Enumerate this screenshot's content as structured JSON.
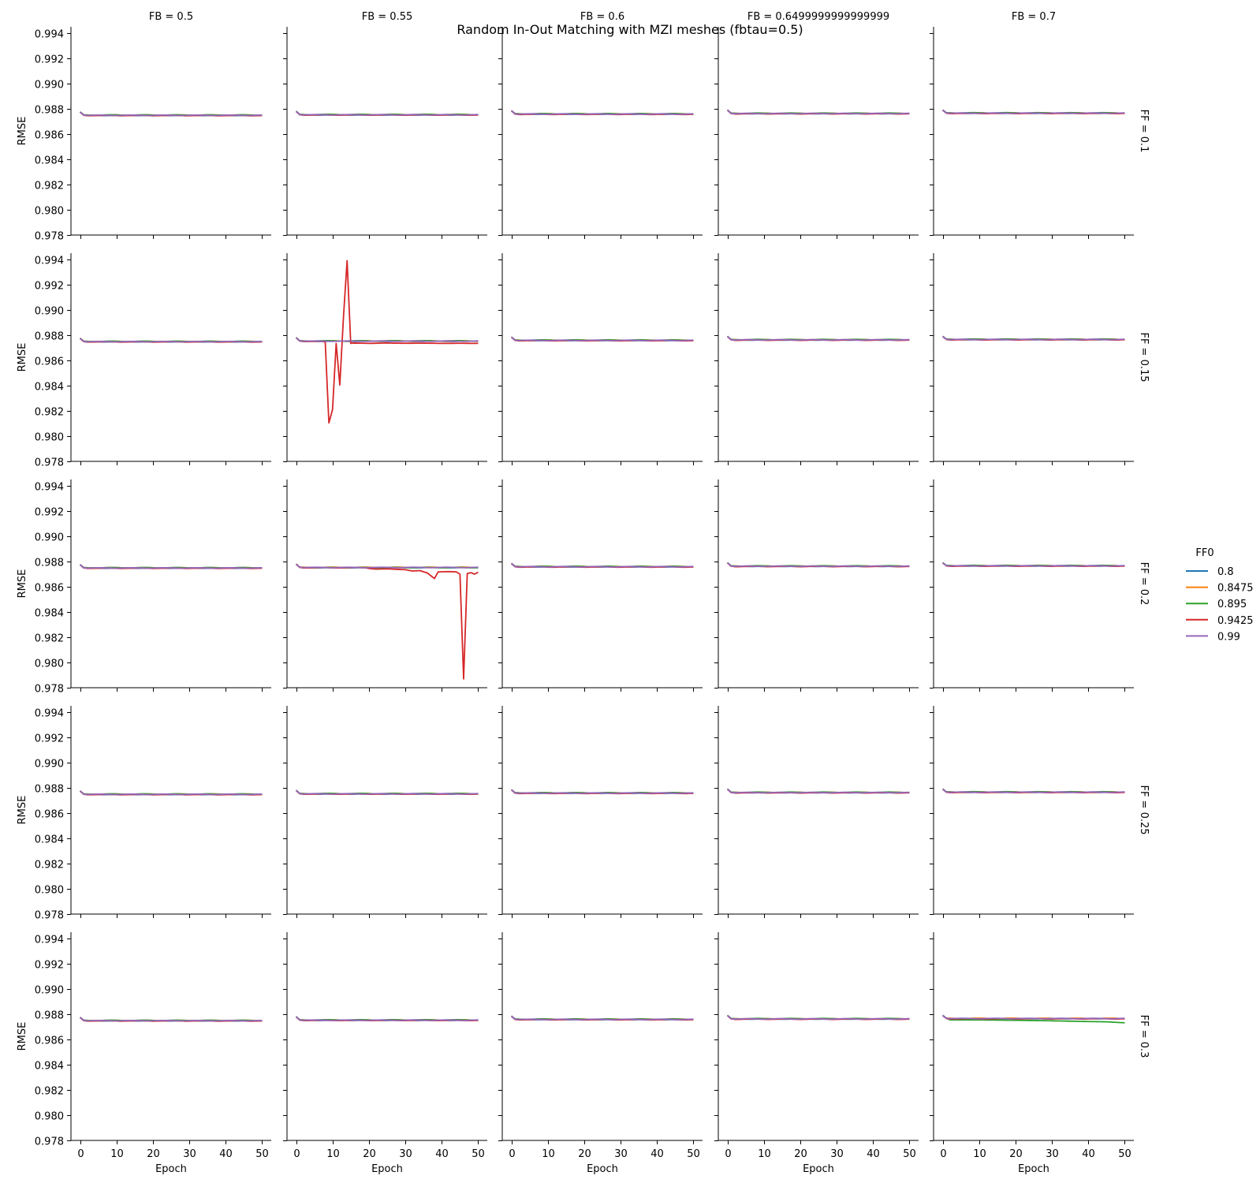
{
  "chart_data": {
    "type": "line",
    "title": "Random In-Out Matching with MZI meshes (fbtau=0.5)",
    "xlabel": "Epoch",
    "ylabel": "RMSE",
    "xlim": [
      -2.5,
      52.5
    ],
    "ylim": [
      0.978,
      0.9945
    ],
    "xticks": [
      "0",
      "10",
      "20",
      "30",
      "40",
      "50"
    ],
    "yticks": [
      "0.978",
      "0.980",
      "0.982",
      "0.984",
      "0.986",
      "0.988",
      "0.990",
      "0.992",
      "0.994"
    ],
    "col_labels": [
      "FB = 0.5",
      "FB = 0.55",
      "FB = 0.6",
      "FB = 0.6499999999999999",
      "FB = 0.7"
    ],
    "row_labels": [
      "FF = 0.1",
      "FF = 0.15",
      "FF = 0.2",
      "FF = 0.25",
      "FF = 0.3"
    ],
    "legend": {
      "title": "FF0",
      "placement": "right",
      "entries": [
        "0.8",
        "0.8475",
        "0.895",
        "0.9425",
        "0.99"
      ]
    },
    "colors": {
      "0.8": "#1f77b4",
      "0.8475": "#ff7f0e",
      "0.895": "#2ca02c",
      "0.9425": "#d62728",
      "0.99": "#9467bd"
    },
    "grid": false,
    "epochs": 51,
    "panels": [
      [
        {
          "start": 0.98775,
          "plateau": 0.98748
        },
        {
          "start": 0.9878,
          "plateau": 0.98752
        },
        {
          "start": 0.98785,
          "plateau": 0.98758
        },
        {
          "start": 0.9879,
          "plateau": 0.98762
        },
        {
          "start": 0.9879,
          "plateau": 0.98765
        }
      ],
      [
        {
          "start": 0.98775,
          "plateau": 0.98748
        },
        {
          "start": 0.9878,
          "plateau": 0.98752,
          "anomaly": {
            "series": "0.9425",
            "points": [
              [
                8,
                0.98745
              ],
              [
                9,
                0.98105
              ],
              [
                10,
                0.9821
              ],
              [
                11,
                0.98735
              ],
              [
                12,
                0.98405
              ],
              [
                13,
                0.9894
              ],
              [
                14,
                0.9939
              ],
              [
                15,
                0.98735
              ],
              [
                16,
                0.98738
              ],
              [
                20,
                0.98735
              ],
              [
                25,
                0.98738
              ],
              [
                30,
                0.98736
              ],
              [
                35,
                0.98737
              ],
              [
                40,
                0.98735
              ],
              [
                45,
                0.98736
              ],
              [
                50,
                0.98735
              ]
            ]
          }
        },
        {
          "start": 0.98785,
          "plateau": 0.98758
        },
        {
          "start": 0.9879,
          "plateau": 0.98762
        },
        {
          "start": 0.9879,
          "plateau": 0.98765
        }
      ],
      [
        {
          "start": 0.98775,
          "plateau": 0.98748
        },
        {
          "start": 0.9878,
          "plateau": 0.98752,
          "anomaly": {
            "series": "0.9425",
            "points": [
              [
                20,
                0.98745
              ],
              [
                22,
                0.9874
              ],
              [
                25,
                0.98742
              ],
              [
                28,
                0.98738
              ],
              [
                30,
                0.98735
              ],
              [
                32,
                0.98725
              ],
              [
                34,
                0.98728
              ],
              [
                36,
                0.9871
              ],
              [
                38,
                0.98665
              ],
              [
                39,
                0.98718
              ],
              [
                42,
                0.9872
              ],
              [
                44,
                0.98718
              ],
              [
                45,
                0.987
              ],
              [
                46,
                0.9787
              ],
              [
                47,
                0.98705
              ],
              [
                48,
                0.98712
              ],
              [
                49,
                0.987
              ],
              [
                50,
                0.98715
              ]
            ]
          },
          "shift": {
            "series": "0.895",
            "delta": -3e-05
          }
        },
        {
          "start": 0.98785,
          "plateau": 0.98758
        },
        {
          "start": 0.9879,
          "plateau": 0.98762
        },
        {
          "start": 0.9879,
          "plateau": 0.98765
        }
      ],
      [
        {
          "start": 0.98775,
          "plateau": 0.98748
        },
        {
          "start": 0.9878,
          "plateau": 0.98752
        },
        {
          "start": 0.98785,
          "plateau": 0.98758
        },
        {
          "start": 0.9879,
          "plateau": 0.98762
        },
        {
          "start": 0.9879,
          "plateau": 0.98765
        }
      ],
      [
        {
          "start": 0.98775,
          "plateau": 0.98748
        },
        {
          "start": 0.9878,
          "plateau": 0.98752
        },
        {
          "start": 0.98785,
          "plateau": 0.98758
        },
        {
          "start": 0.9879,
          "plateau": 0.98762
        },
        {
          "start": 0.9879,
          "plateau": 0.98765,
          "anomaly": {
            "series": "0.895",
            "points": [
              [
                2,
                0.98755
              ],
              [
                10,
                0.98755
              ],
              [
                20,
                0.98752
              ],
              [
                30,
                0.98748
              ],
              [
                35,
                0.98745
              ],
              [
                40,
                0.98742
              ],
              [
                45,
                0.9874
              ],
              [
                48,
                0.98735
              ],
              [
                50,
                0.98732
              ]
            ]
          }
        }
      ]
    ]
  }
}
